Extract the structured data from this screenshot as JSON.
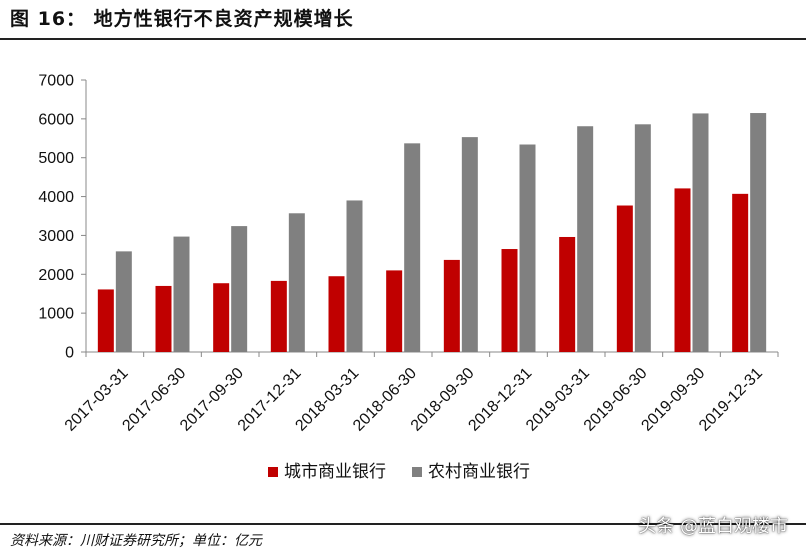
{
  "header": {
    "title": "图 16：   地方性银行不良资产规模增长"
  },
  "footer": {
    "source": "资料来源：川财证券研究所；单位：亿元",
    "watermark": "头条 @蓝白观楼市"
  },
  "chart_data": {
    "type": "bar",
    "categories": [
      "2017-03-31",
      "2017-06-30",
      "2017-09-30",
      "2017-12-31",
      "2018-03-31",
      "2018-06-30",
      "2018-09-30",
      "2018-12-31",
      "2019-03-31",
      "2019-06-30",
      "2019-09-30",
      "2019-12-31"
    ],
    "series": [
      {
        "name": "城市商业银行",
        "color": "#c00000",
        "values": [
          1610,
          1700,
          1770,
          1830,
          1950,
          2100,
          2370,
          2650,
          2960,
          3770,
          4210,
          4070
        ]
      },
      {
        "name": "农村商业银行",
        "color": "#808080",
        "values": [
          2590,
          2970,
          3240,
          3570,
          3900,
          5370,
          5530,
          5340,
          5810,
          5860,
          6140,
          6150
        ]
      }
    ],
    "yticks": [
      0,
      1000,
      2000,
      3000,
      4000,
      5000,
      6000,
      7000
    ],
    "ylim": [
      0,
      7000
    ],
    "grid": false,
    "legend_position": "bottom"
  }
}
